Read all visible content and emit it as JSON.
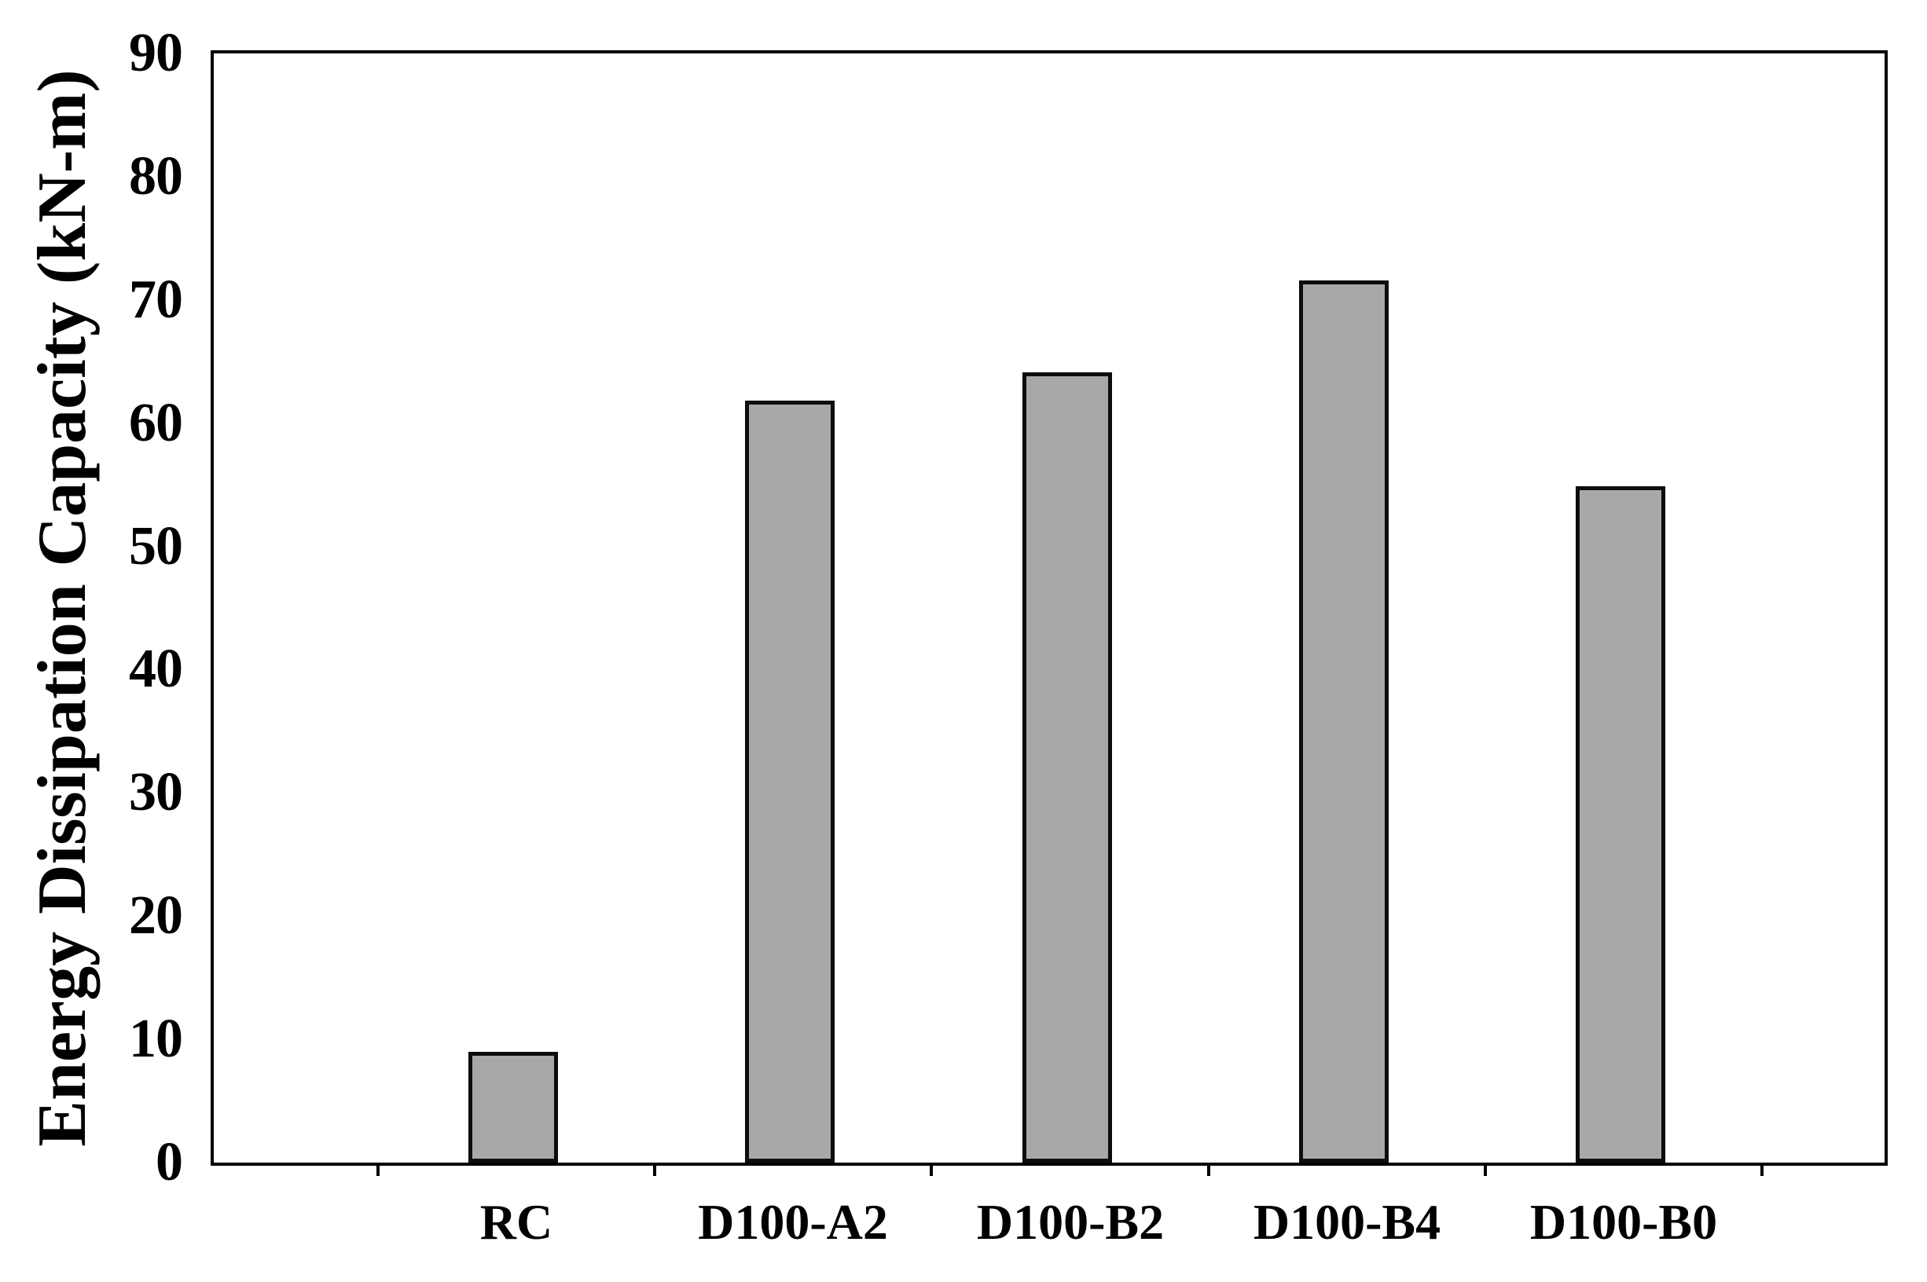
{
  "figure": {
    "background": "#ffffff"
  },
  "chart_data": {
    "type": "bar",
    "categories": [
      "RC",
      "D100-A2",
      "D100-B2",
      "D100-B4",
      "D100-B0"
    ],
    "values": [
      9.0,
      61.8,
      64.1,
      71.6,
      54.9
    ],
    "title": "",
    "xlabel": "",
    "ylabel": "Energy Dissipation Capacity (kN-m)",
    "ylim": [
      0,
      90
    ],
    "ytick_interval": 10,
    "ytick_labels": [
      "0",
      "10",
      "20",
      "30",
      "40",
      "50",
      "60",
      "70",
      "80",
      "90"
    ],
    "grid": false,
    "legend": "none",
    "bar_fill_color": "#a8a8a8",
    "bar_border_color": "#0d0d0d",
    "frame_color": "#000000",
    "text_color": "#000000"
  }
}
